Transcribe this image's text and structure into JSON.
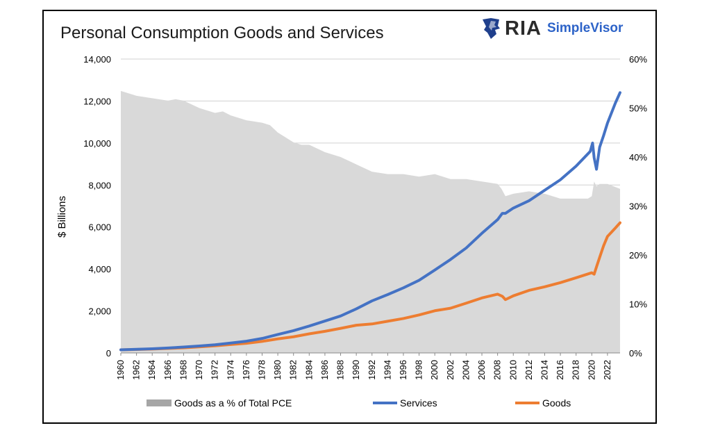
{
  "title": "Personal Consumption Goods and Services",
  "logo": {
    "ria_text": "RIA",
    "simplevisor_text": "SimpleVisor",
    "eagle_icon": "eagle-icon"
  },
  "chart_data": {
    "type": "line",
    "title": "Personal Consumption Goods and Services",
    "ylabel": "$ Billions",
    "xlabel": "",
    "ylim": [
      0,
      14000
    ],
    "y2lim": [
      0,
      60
    ],
    "xlim": [
      1960,
      2023.6
    ],
    "y_ticks": [
      "0",
      "2,000",
      "4,000",
      "6,000",
      "8,000",
      "10,000",
      "12,000",
      "14,000"
    ],
    "y2_ticks": [
      "0%",
      "10%",
      "20%",
      "30%",
      "40%",
      "50%",
      "60%"
    ],
    "x_ticks": [
      "1960",
      "1962",
      "1964",
      "1966",
      "1968",
      "1970",
      "1972",
      "1974",
      "1976",
      "1978",
      "1980",
      "1982",
      "1984",
      "1986",
      "1988",
      "1990",
      "1992",
      "1994",
      "1996",
      "1998",
      "2000",
      "2002",
      "2004",
      "2006",
      "2008",
      "2010",
      "2012",
      "2014",
      "2016",
      "2018",
      "2020",
      "2022"
    ],
    "grid": true,
    "legend_position": "bottom",
    "colors": {
      "share": "#d9d9d9",
      "services": "#4472c4",
      "goods": "#ed7d31"
    },
    "series": [
      {
        "name": "Goods as a % of Total PCE",
        "kind": "area",
        "axis": "right",
        "x": [
          1960,
          1961,
          1962,
          1964,
          1966,
          1967,
          1968,
          1970,
          1972,
          1973,
          1974,
          1976,
          1978,
          1979,
          1980,
          1982,
          1983,
          1984,
          1986,
          1988,
          1990,
          1992,
          1994,
          1996,
          1998,
          2000,
          2002,
          2004,
          2006,
          2008,
          2008.5,
          2009,
          2010,
          2012,
          2014,
          2016,
          2018,
          2019.5,
          2020,
          2020.3,
          2020.6,
          2021,
          2022,
          2023.6
        ],
        "values": [
          53.5,
          53,
          52.5,
          52,
          51.5,
          51.8,
          51.5,
          50,
          49,
          49.3,
          48.5,
          47.5,
          47,
          46.5,
          45,
          43,
          42.5,
          42.5,
          41,
          40,
          38.5,
          37,
          36.5,
          36.5,
          36,
          36.5,
          35.5,
          35.5,
          35,
          34.5,
          33.5,
          32,
          32.5,
          33,
          32.5,
          31.5,
          31.5,
          31.5,
          32,
          35,
          34,
          34.5,
          34.5,
          33.5
        ]
      },
      {
        "name": "Services",
        "kind": "line",
        "axis": "left",
        "x": [
          1960,
          1962,
          1964,
          1966,
          1968,
          1970,
          1972,
          1974,
          1976,
          1978,
          1980,
          1982,
          1984,
          1986,
          1988,
          1990,
          1992,
          1994,
          1996,
          1998,
          2000,
          2002,
          2004,
          2006,
          2008,
          2008.6,
          2009,
          2010,
          2012,
          2014,
          2016,
          2018,
          2019.8,
          2020.1,
          2020.3,
          2020.6,
          2021,
          2021.5,
          2022,
          2023,
          2023.6
        ],
        "values": [
          150,
          175,
          200,
          235,
          280,
          330,
          390,
          470,
          560,
          690,
          880,
          1060,
          1280,
          1520,
          1760,
          2100,
          2480,
          2780,
          3100,
          3460,
          3950,
          4450,
          5000,
          5700,
          6350,
          6650,
          6650,
          6900,
          7250,
          7750,
          8250,
          8900,
          9600,
          10000,
          9300,
          8750,
          9800,
          10350,
          10950,
          11900,
          12400
        ]
      },
      {
        "name": "Goods",
        "kind": "line",
        "axis": "left",
        "x": [
          1960,
          1962,
          1964,
          1966,
          1968,
          1970,
          1972,
          1974,
          1976,
          1978,
          1980,
          1982,
          1984,
          1986,
          1988,
          1990,
          1992,
          1994,
          1996,
          1998,
          2000,
          2002,
          2004,
          2006,
          2008,
          2008.6,
          2009,
          2010,
          2012,
          2014,
          2016,
          2018,
          2020,
          2020.3,
          2020.6,
          2021,
          2021.5,
          2022,
          2023,
          2023.6
        ],
        "values": [
          150,
          165,
          185,
          215,
          245,
          290,
          340,
          400,
          460,
          550,
          670,
          770,
          910,
          1030,
          1170,
          1320,
          1380,
          1510,
          1640,
          1810,
          2010,
          2130,
          2370,
          2620,
          2800,
          2700,
          2540,
          2720,
          2980,
          3150,
          3350,
          3580,
          3820,
          3750,
          4100,
          4550,
          5100,
          5550,
          5950,
          6200
        ]
      }
    ]
  }
}
